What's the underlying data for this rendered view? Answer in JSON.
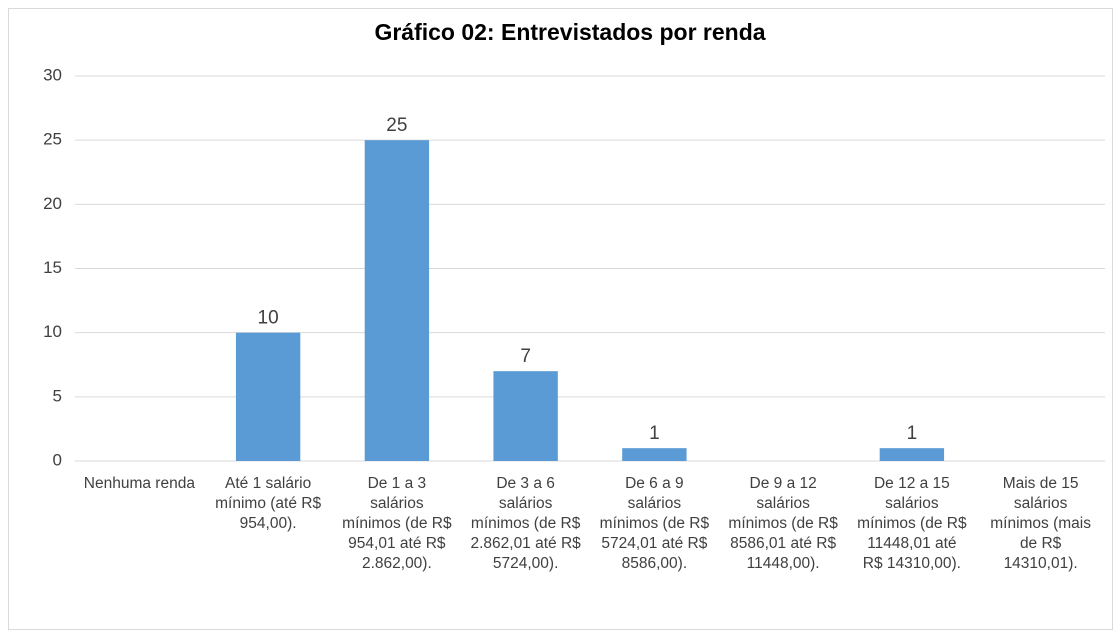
{
  "chart_data": {
    "type": "bar",
    "title": "Gráfico 02: Entrevistados por renda",
    "categories": [
      "Nenhuma renda",
      "Até 1 salário mínimo (até R$ 954,00).",
      "De 1 a 3 salários mínimos (de R$ 954,01 até R$ 2.862,00).",
      "De 3 a 6 salários mínimos (de R$ 2.862,01 até R$ 5724,00).",
      "De 6 a 9 salários mínimos (de R$ 5724,01 até R$ 8586,00).",
      "De 9 a 12 salários mínimos (de R$ 8586,01 até R$ 11448,00).",
      "De 12 a 15 salários mínimos (de R$ 11448,01 até R$ 14310,00).",
      "Mais de 15 salários mínimos (mais de R$ 14310,01)."
    ],
    "values": [
      0,
      10,
      25,
      7,
      1,
      0,
      1,
      0
    ],
    "value_labels": [
      null,
      "10",
      "25",
      "7",
      "1",
      null,
      "1",
      null
    ],
    "color": "#5b9bd5",
    "ylim": [
      0,
      30
    ],
    "yticks": [
      0,
      5,
      10,
      15,
      20,
      25,
      30
    ],
    "grid": true
  }
}
